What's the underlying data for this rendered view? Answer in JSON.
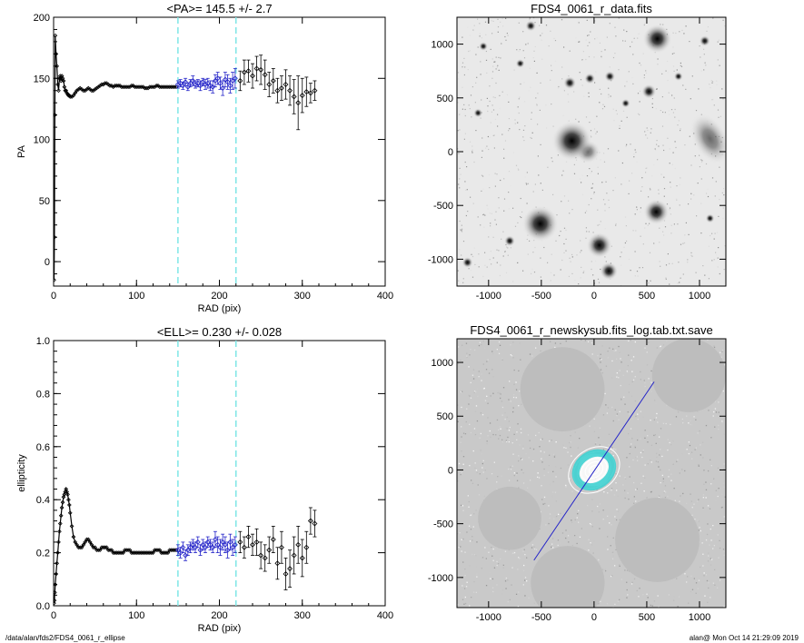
{
  "footer": {
    "path": "/data/alan/fds2/FDS4_0061_r_ellipse",
    "stamp": "alan@  Mon Oct 14 21:29:09 2019"
  },
  "colors": {
    "fit_points": "#2323c8",
    "fit_bounds": "#7fe6e6",
    "data": "#000000"
  },
  "chart_data": [
    {
      "type": "scatter",
      "title": "<PA>= 145.5 +/-   2.7",
      "xlabel": "RAD (pix)",
      "ylabel": "PA",
      "xlim": [
        0,
        400
      ],
      "ylim": [
        -20,
        200
      ],
      "xticks": [
        "0",
        "100",
        "200",
        "300",
        "400"
      ],
      "yticks": [
        "0",
        "50",
        "100",
        "150",
        "200"
      ],
      "fit_range": [
        150,
        220
      ],
      "series": [
        {
          "x": [
            0.5,
            1,
            1.5,
            2,
            3,
            4,
            5,
            6,
            7,
            8,
            9,
            10,
            11,
            12,
            13,
            14,
            15,
            16,
            17,
            18,
            19,
            20,
            22,
            24,
            26,
            28,
            30,
            32,
            34,
            36,
            38,
            40,
            42,
            44,
            46,
            48,
            50,
            52,
            54,
            56,
            58,
            60,
            62,
            64,
            66,
            68,
            70,
            72,
            74,
            76,
            78,
            80,
            82,
            84,
            86,
            88,
            90,
            92,
            94,
            96,
            98,
            100,
            102,
            104,
            106,
            108,
            110,
            112,
            114,
            116,
            118,
            120,
            122,
            124,
            126,
            128,
            130,
            132,
            134,
            136,
            138,
            140,
            142,
            144,
            146,
            148
          ],
          "y": [
            -15,
            20,
            120,
            185,
            170,
            160,
            145,
            140,
            150,
            152,
            148,
            152,
            150,
            148,
            143,
            140,
            140,
            138,
            137,
            136,
            136,
            135,
            135,
            136,
            138,
            140,
            141,
            142,
            141,
            140,
            140,
            141,
            142,
            141,
            140,
            140,
            141,
            142,
            143,
            144,
            145,
            145,
            146,
            146,
            145,
            144,
            144,
            143,
            144,
            144,
            144,
            144,
            143,
            143,
            143,
            143,
            143,
            143,
            144,
            144,
            143,
            143,
            143,
            143,
            143,
            143,
            142,
            142,
            142,
            143,
            143,
            143,
            143,
            144,
            144,
            143,
            143,
            143,
            143,
            143,
            143,
            143,
            143,
            143,
            143,
            143
          ]
        },
        {
          "x": [
            150,
            153,
            156,
            159,
            162,
            165,
            168,
            171,
            174,
            177,
            180,
            183,
            186,
            189,
            192,
            195,
            198,
            201,
            204,
            207,
            210,
            213,
            216,
            219
          ],
          "y": [
            145,
            146,
            144,
            147,
            143,
            146,
            148,
            145,
            146,
            144,
            147,
            145,
            146,
            144,
            143,
            148,
            150,
            146,
            142,
            149,
            147,
            144,
            148,
            150
          ],
          "err": [
            3,
            3,
            3,
            3,
            3,
            3,
            4,
            3,
            3,
            4,
            3,
            4,
            4,
            4,
            5,
            5,
            5,
            5,
            6,
            6,
            6,
            6,
            7,
            8
          ]
        },
        {
          "x": [
            225,
            230,
            235,
            240,
            245,
            250,
            255,
            260,
            265,
            270,
            275,
            280,
            285,
            290,
            295,
            300,
            305,
            310,
            315
          ],
          "y": [
            148,
            155,
            156,
            152,
            158,
            157,
            153,
            145,
            148,
            140,
            142,
            145,
            140,
            135,
            130,
            136,
            139,
            138,
            140
          ],
          "err": [
            8,
            10,
            9,
            10,
            10,
            12,
            12,
            10,
            10,
            10,
            10,
            12,
            12,
            14,
            22,
            14,
            12,
            8,
            8
          ]
        }
      ]
    },
    {
      "type": "image",
      "title": "FDS4_0061_r_data.fits",
      "xlim": [
        -1300,
        1250
      ],
      "ylim": [
        -1250,
        1250
      ],
      "xticks": [
        "-1000",
        "-500",
        "0",
        "500",
        "1000"
      ],
      "yticks": [
        "-1000",
        "-500",
        "0",
        "500",
        "1000"
      ],
      "sources": [
        {
          "x": -210,
          "y": 100,
          "r": 22
        },
        {
          "x": -510,
          "y": -670,
          "r": 20
        },
        {
          "x": 600,
          "y": 1050,
          "r": 16
        },
        {
          "x": 590,
          "y": -560,
          "r": 14
        },
        {
          "x": 50,
          "y": -870,
          "r": 14
        },
        {
          "x": 140,
          "y": -1110,
          "r": 10
        },
        {
          "x": 520,
          "y": 560,
          "r": 8
        },
        {
          "x": -230,
          "y": 640,
          "r": 7
        },
        {
          "x": -40,
          "y": 680,
          "r": 6
        },
        {
          "x": 150,
          "y": 700,
          "r": 6
        },
        {
          "x": -600,
          "y": 1170,
          "r": 6
        },
        {
          "x": 1050,
          "y": 1030,
          "r": 6
        },
        {
          "x": -1100,
          "y": 360,
          "r": 5
        },
        {
          "x": -800,
          "y": -830,
          "r": 6
        },
        {
          "x": 800,
          "y": 700,
          "r": 5
        },
        {
          "x": 300,
          "y": 450,
          "r": 5
        },
        {
          "x": -700,
          "y": 820,
          "r": 5
        },
        {
          "x": -1200,
          "y": -1030,
          "r": 6
        },
        {
          "x": 1100,
          "y": -620,
          "r": 5
        },
        {
          "x": -1050,
          "y": 980,
          "r": 5
        }
      ],
      "galaxies": [
        {
          "x": 1100,
          "y": 120,
          "rx": 160,
          "ry": 260,
          "rot": -30
        },
        {
          "x": -60,
          "y": 0,
          "rx": 120,
          "ry": 110,
          "rot": 0
        }
      ]
    },
    {
      "type": "scatter",
      "title": "<ELL>= 0.230 +/-  0.028",
      "xlabel": "RAD (pix)",
      "ylabel": "ellipticity",
      "xlim": [
        0,
        400
      ],
      "ylim": [
        0,
        1
      ],
      "xticks": [
        "0",
        "100",
        "200",
        "300",
        "400"
      ],
      "yticks": [
        "0.0",
        "0.2",
        "0.4",
        "0.6",
        "0.8",
        "1.0"
      ],
      "fit_range": [
        150,
        220
      ],
      "series": [
        {
          "x": [
            0.5,
            1,
            1.5,
            2,
            3,
            4,
            5,
            6,
            7,
            8,
            9,
            10,
            11,
            12,
            13,
            14,
            15,
            16,
            17,
            18,
            19,
            20,
            22,
            24,
            26,
            28,
            30,
            32,
            34,
            36,
            38,
            40,
            42,
            44,
            46,
            48,
            50,
            52,
            54,
            56,
            58,
            60,
            62,
            64,
            66,
            68,
            70,
            72,
            74,
            76,
            78,
            80,
            82,
            84,
            86,
            88,
            90,
            92,
            94,
            96,
            98,
            100,
            102,
            104,
            106,
            108,
            110,
            112,
            114,
            116,
            118,
            120,
            122,
            124,
            126,
            128,
            130,
            132,
            134,
            136,
            138,
            140,
            142,
            144,
            146,
            148
          ],
          "y": [
            0.01,
            0.02,
            0.05,
            0.08,
            0.12,
            0.16,
            0.2,
            0.24,
            0.28,
            0.31,
            0.34,
            0.37,
            0.39,
            0.41,
            0.42,
            0.43,
            0.44,
            0.43,
            0.42,
            0.4,
            0.38,
            0.35,
            0.3,
            0.26,
            0.24,
            0.23,
            0.22,
            0.22,
            0.22,
            0.23,
            0.24,
            0.25,
            0.25,
            0.24,
            0.23,
            0.22,
            0.22,
            0.21,
            0.21,
            0.21,
            0.22,
            0.22,
            0.22,
            0.22,
            0.21,
            0.21,
            0.21,
            0.2,
            0.2,
            0.2,
            0.2,
            0.2,
            0.2,
            0.2,
            0.21,
            0.21,
            0.21,
            0.21,
            0.2,
            0.2,
            0.2,
            0.2,
            0.2,
            0.2,
            0.2,
            0.2,
            0.2,
            0.2,
            0.2,
            0.2,
            0.2,
            0.2,
            0.21,
            0.21,
            0.21,
            0.21,
            0.2,
            0.2,
            0.2,
            0.2,
            0.2,
            0.21,
            0.21,
            0.21,
            0.21,
            0.21
          ]
        },
        {
          "x": [
            150,
            153,
            156,
            159,
            162,
            165,
            168,
            171,
            174,
            177,
            180,
            183,
            186,
            189,
            192,
            195,
            198,
            201,
            204,
            207,
            210,
            213,
            216,
            219
          ],
          "y": [
            0.21,
            0.2,
            0.22,
            0.19,
            0.21,
            0.22,
            0.23,
            0.22,
            0.24,
            0.21,
            0.23,
            0.22,
            0.24,
            0.23,
            0.22,
            0.25,
            0.23,
            0.22,
            0.24,
            0.23,
            0.21,
            0.24,
            0.22,
            0.23
          ],
          "err": [
            0.02,
            0.02,
            0.02,
            0.02,
            0.02,
            0.02,
            0.02,
            0.02,
            0.02,
            0.02,
            0.02,
            0.02,
            0.02,
            0.02,
            0.02,
            0.03,
            0.03,
            0.03,
            0.03,
            0.03,
            0.03,
            0.03,
            0.03,
            0.03
          ]
        },
        {
          "x": [
            225,
            230,
            235,
            240,
            245,
            250,
            255,
            260,
            265,
            270,
            275,
            280,
            285,
            290,
            295,
            300,
            305,
            310,
            315
          ],
          "y": [
            0.24,
            0.22,
            0.26,
            0.23,
            0.24,
            0.19,
            0.18,
            0.21,
            0.25,
            0.16,
            0.22,
            0.12,
            0.14,
            0.19,
            0.23,
            0.18,
            0.22,
            0.32,
            0.31
          ],
          "err": [
            0.04,
            0.04,
            0.04,
            0.04,
            0.05,
            0.05,
            0.05,
            0.05,
            0.05,
            0.06,
            0.06,
            0.06,
            0.07,
            0.07,
            0.07,
            0.07,
            0.06,
            0.05,
            0.05
          ]
        }
      ]
    },
    {
      "type": "image",
      "title": "FDS4_0061_r_newskysub.fits_log.tab.txt.save",
      "xlim": [
        -1300,
        1250
      ],
      "ylim": [
        -1280,
        1220
      ],
      "xticks": [
        "-1000",
        "-500",
        "0",
        "500",
        "1000"
      ],
      "yticks": [
        "-1000",
        "-500",
        "0",
        "500",
        "1000"
      ],
      "pa_line": [
        [
          -570,
          -840
        ],
        [
          570,
          820
        ]
      ],
      "masks": [
        {
          "x": -800,
          "y": -450,
          "r": 300
        },
        {
          "x": -300,
          "y": 750,
          "r": 400
        },
        {
          "x": 900,
          "y": 880,
          "r": 350
        },
        {
          "x": 600,
          "y": -650,
          "r": 400
        },
        {
          "x": -250,
          "y": -1050,
          "r": 350
        }
      ],
      "isophotes": [
        {
          "rx": 50,
          "ry": 38
        },
        {
          "rx": 90,
          "ry": 70
        },
        {
          "rx": 130,
          "ry": 100
        },
        {
          "rx": 170,
          "ry": 130
        },
        {
          "rx": 210,
          "ry": 160
        },
        {
          "rx": 260,
          "ry": 200
        }
      ],
      "fit_ring": [
        150,
        220
      ]
    }
  ]
}
